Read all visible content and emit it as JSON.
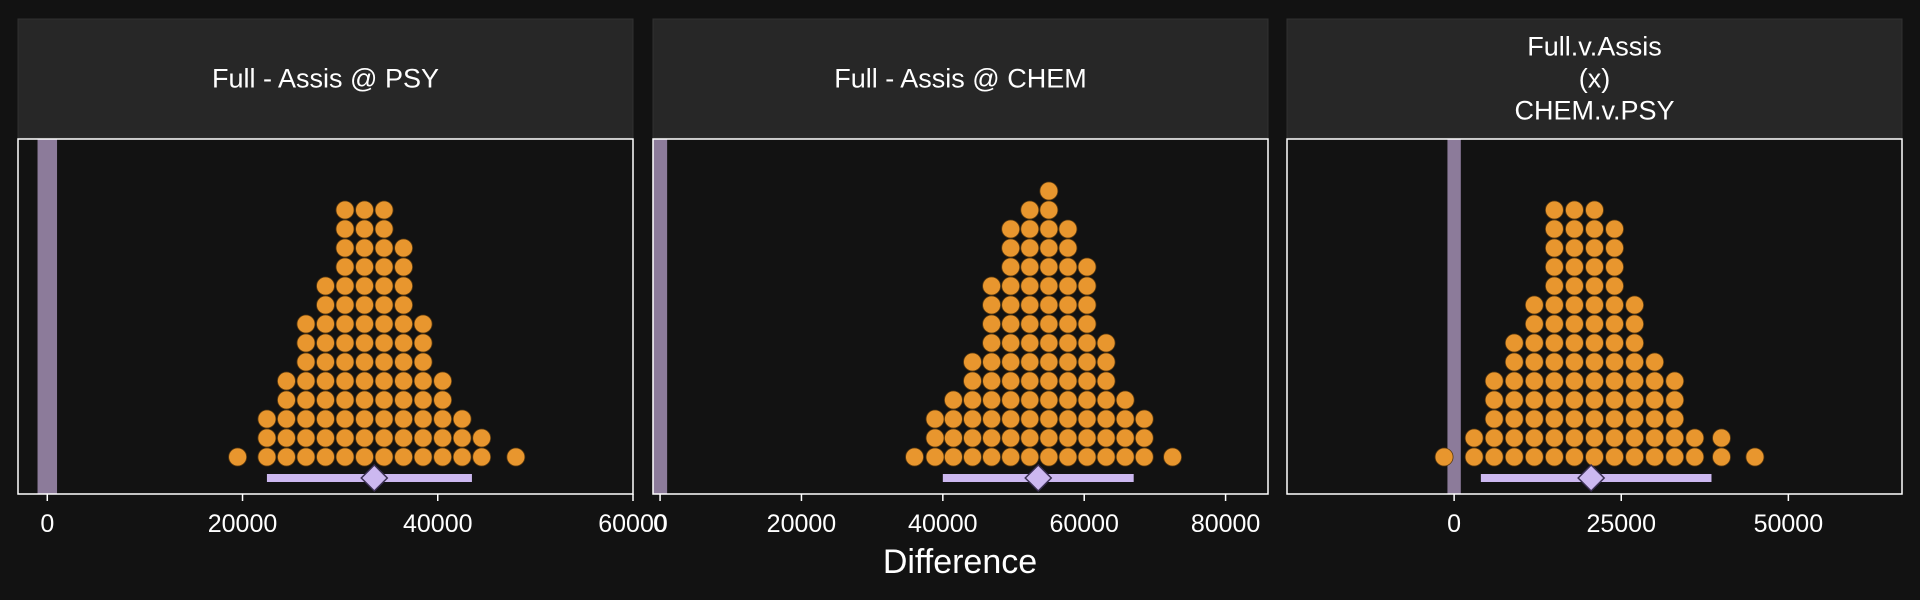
{
  "figure": {
    "xlabel": "Difference",
    "background": "#121212",
    "strip_color": "#272727",
    "panel_border": "#ffffff",
    "text_color": "#ffffff",
    "dot_color": "#e8962e",
    "interval_color": "#ccb8f0",
    "rope_color": "#8c7b9a"
  },
  "chart_data": [
    {
      "type": "dotplot",
      "title_lines": [
        "Full - Assis @ PSY"
      ],
      "xlim": [
        -3000,
        60000
      ],
      "xticks": [
        0,
        20000,
        40000,
        60000
      ],
      "xtick_labels": [
        "0",
        "20000",
        "40000",
        "60000"
      ],
      "bin_width": 2000,
      "bins": [
        {
          "x": 19500,
          "count": 1
        },
        {
          "x": 22500,
          "count": 3
        },
        {
          "x": 24500,
          "count": 5
        },
        {
          "x": 26500,
          "count": 8
        },
        {
          "x": 28500,
          "count": 10
        },
        {
          "x": 30500,
          "count": 14
        },
        {
          "x": 32500,
          "count": 14
        },
        {
          "x": 34500,
          "count": 14
        },
        {
          "x": 36500,
          "count": 12
        },
        {
          "x": 38500,
          "count": 8
        },
        {
          "x": 40500,
          "count": 5
        },
        {
          "x": 42500,
          "count": 3
        },
        {
          "x": 44500,
          "count": 2
        },
        {
          "x": 48000,
          "count": 1
        }
      ],
      "interval": [
        22500,
        43500
      ],
      "point_estimate": 33500,
      "rope": [
        -1000,
        1000
      ]
    },
    {
      "type": "dotplot",
      "title_lines": [
        "Full - Assis @ CHEM"
      ],
      "xlim": [
        -1000,
        86000
      ],
      "xticks": [
        0,
        20000,
        40000,
        60000,
        80000
      ],
      "xtick_labels": [
        "0",
        "20000",
        "40000",
        "60000",
        "80000"
      ],
      "bin_width": 2600,
      "bins": [
        {
          "x": 36000,
          "count": 1
        },
        {
          "x": 38900,
          "count": 3
        },
        {
          "x": 41500,
          "count": 4
        },
        {
          "x": 44200,
          "count": 6
        },
        {
          "x": 46900,
          "count": 10
        },
        {
          "x": 49600,
          "count": 13
        },
        {
          "x": 52300,
          "count": 14
        },
        {
          "x": 55000,
          "count": 15
        },
        {
          "x": 57700,
          "count": 13
        },
        {
          "x": 60400,
          "count": 11
        },
        {
          "x": 63100,
          "count": 7
        },
        {
          "x": 65800,
          "count": 4
        },
        {
          "x": 68500,
          "count": 3
        },
        {
          "x": 72500,
          "count": 1
        }
      ],
      "interval": [
        40000,
        67000
      ],
      "point_estimate": 53500,
      "rope": [
        -1000,
        1000
      ]
    },
    {
      "type": "dotplot",
      "title_lines": [
        "Full.v.Assis",
        "(x)",
        "CHEM.v.PSY"
      ],
      "xlim": [
        -25000,
        67000
      ],
      "xticks": [
        0,
        25000,
        50000
      ],
      "xtick_labels": [
        "0",
        "25000",
        "50000"
      ],
      "bin_width": 3000,
      "bins": [
        {
          "x": -1500,
          "count": 1
        },
        {
          "x": 3000,
          "count": 2
        },
        {
          "x": 6000,
          "count": 5
        },
        {
          "x": 9000,
          "count": 7
        },
        {
          "x": 12000,
          "count": 9
        },
        {
          "x": 15000,
          "count": 14
        },
        {
          "x": 18000,
          "count": 14
        },
        {
          "x": 21000,
          "count": 14
        },
        {
          "x": 24000,
          "count": 13
        },
        {
          "x": 27000,
          "count": 9
        },
        {
          "x": 30000,
          "count": 6
        },
        {
          "x": 33000,
          "count": 5
        },
        {
          "x": 36000,
          "count": 2
        },
        {
          "x": 40000,
          "count": 2
        },
        {
          "x": 45000,
          "count": 1
        }
      ],
      "interval": [
        4000,
        38500
      ],
      "point_estimate": 20500,
      "rope": [
        -1000,
        1000
      ]
    }
  ]
}
